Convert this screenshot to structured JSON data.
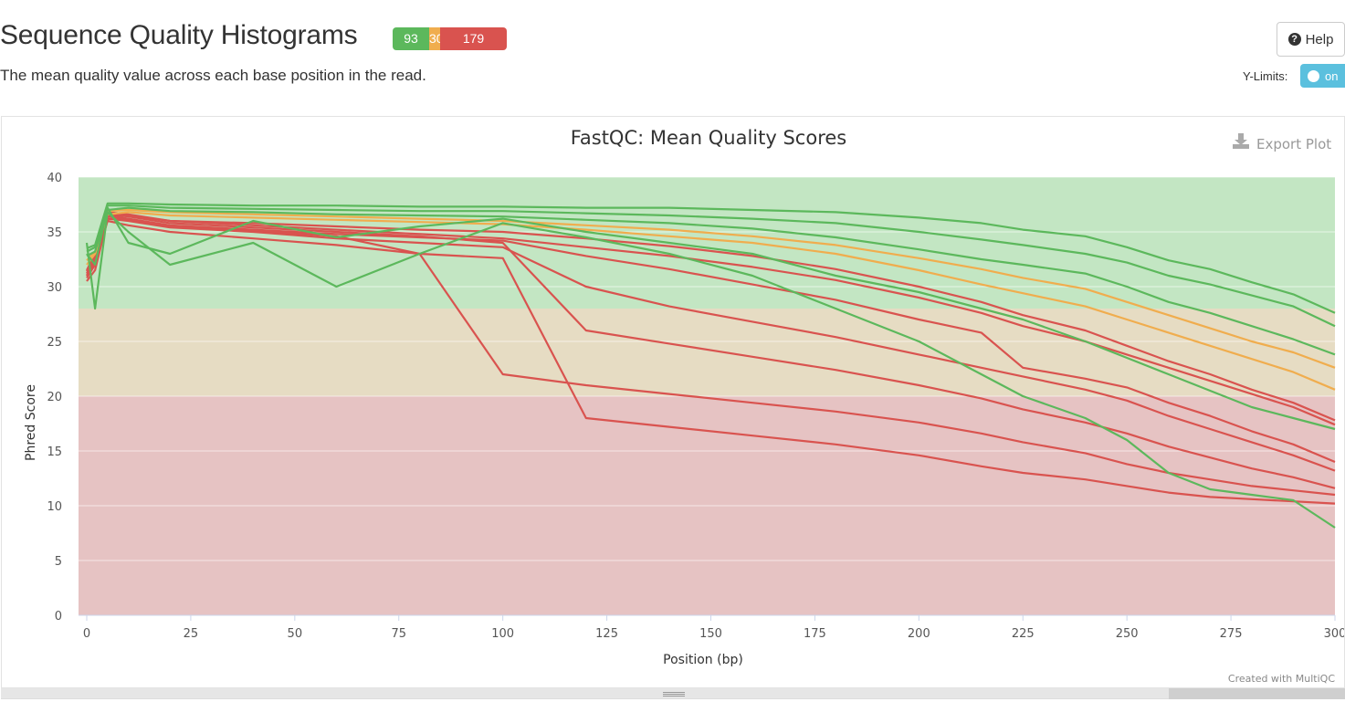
{
  "header": {
    "title": "Sequence Quality Histograms",
    "description": "The mean quality value across each base position in the read.",
    "help_label": "Help",
    "ylimits_label": "Y-Limits:",
    "ylimits_toggle": "on"
  },
  "status": {
    "pass": "93",
    "warn": "30",
    "fail": "179",
    "colors": {
      "pass": "#5cb85c",
      "warn": "#f0ad4e",
      "fail": "#d9534f"
    }
  },
  "plot": {
    "export_label": "Export Plot",
    "credit": "Created with MultiQC"
  },
  "chart_data": {
    "type": "line",
    "title": "FastQC: Mean Quality Scores",
    "xlabel": "Position (bp)",
    "ylabel": "Phred Score",
    "xlim": [
      0,
      300
    ],
    "ylim": [
      0,
      40
    ],
    "xticks": [
      0,
      25,
      50,
      75,
      100,
      125,
      150,
      175,
      200,
      225,
      250,
      275,
      300
    ],
    "yticks": [
      0,
      5,
      10,
      15,
      20,
      25,
      30,
      35,
      40
    ],
    "bands": [
      {
        "from": 28,
        "to": 40,
        "color": "#c3e6c3"
      },
      {
        "from": 20,
        "to": 28,
        "color": "#e6dcc3"
      },
      {
        "from": 0,
        "to": 20,
        "color": "#e6c3c3"
      }
    ],
    "x": [
      0,
      2,
      5,
      10,
      20,
      40,
      60,
      80,
      100,
      120,
      140,
      160,
      180,
      200,
      215,
      225,
      240,
      250,
      260,
      270,
      280,
      290,
      300
    ],
    "series": [
      {
        "status": "pass",
        "color": "#5cb85c",
        "values": [
          33.5,
          33.8,
          37.6,
          37.6,
          37.5,
          37.4,
          37.4,
          37.3,
          37.3,
          37.2,
          37.2,
          37.0,
          36.8,
          36.3,
          35.8,
          35.2,
          34.6,
          33.6,
          32.4,
          31.6,
          30.4,
          29.3,
          27.6
        ]
      },
      {
        "status": "pass",
        "color": "#5cb85c",
        "values": [
          33.2,
          33.6,
          37.4,
          37.4,
          37.2,
          37.1,
          37.0,
          36.9,
          36.9,
          36.7,
          36.5,
          36.2,
          35.8,
          35.0,
          34.3,
          33.8,
          33.0,
          32.2,
          31.0,
          30.2,
          29.2,
          28.2,
          26.4
        ]
      },
      {
        "status": "pass",
        "color": "#5cb85c",
        "values": [
          32.8,
          33.2,
          37.0,
          37.2,
          36.9,
          36.8,
          36.6,
          36.5,
          36.4,
          36.1,
          35.8,
          35.3,
          34.5,
          33.4,
          32.5,
          32.0,
          31.2,
          30.0,
          28.6,
          27.6,
          26.4,
          25.2,
          23.8
        ]
      },
      {
        "status": "pass",
        "color": "#5cb85c",
        "values": [
          33.0,
          32.0,
          37.2,
          34.0,
          33.0,
          36.0,
          34.5,
          35.5,
          36.2,
          35.0,
          34.0,
          33.0,
          31.0,
          29.5,
          28.0,
          27.0,
          25.0,
          23.5,
          22.0,
          20.5,
          19.0,
          18.0,
          17.0
        ]
      },
      {
        "status": "pass",
        "color": "#5cb85c",
        "values": [
          34.0,
          28.0,
          36.8,
          35.0,
          32.0,
          34.0,
          30.0,
          33.0,
          35.8,
          34.5,
          33.0,
          31.0,
          28.0,
          25.0,
          22.0,
          20.0,
          18.0,
          16.0,
          13.0,
          11.5,
          11.0,
          10.5,
          8.0
        ]
      },
      {
        "status": "warn",
        "color": "#f0ad4e",
        "values": [
          32.0,
          33.0,
          36.6,
          36.8,
          36.5,
          36.3,
          36.1,
          35.9,
          35.7,
          35.2,
          34.6,
          34.0,
          33.0,
          31.5,
          30.2,
          29.4,
          28.2,
          27.0,
          25.8,
          24.6,
          23.4,
          22.2,
          20.6
        ]
      },
      {
        "status": "warn",
        "color": "#f0ad4e",
        "values": [
          32.4,
          33.2,
          36.9,
          37.0,
          36.8,
          36.6,
          36.4,
          36.2,
          36.0,
          35.6,
          35.2,
          34.6,
          33.8,
          32.6,
          31.6,
          30.8,
          29.8,
          28.6,
          27.4,
          26.2,
          25.0,
          24.0,
          22.6
        ]
      },
      {
        "status": "fail",
        "color": "#d9534f",
        "values": [
          31.0,
          32.5,
          36.8,
          36.6,
          36.0,
          35.8,
          35.5,
          35.2,
          35.0,
          34.4,
          33.7,
          32.8,
          31.6,
          30.0,
          28.6,
          27.4,
          26.0,
          24.6,
          23.2,
          22.0,
          20.6,
          19.4,
          17.8
        ]
      },
      {
        "status": "fail",
        "color": "#d9534f",
        "values": [
          31.5,
          33.0,
          36.5,
          36.2,
          35.6,
          35.2,
          34.8,
          34.5,
          34.2,
          32.8,
          31.6,
          30.2,
          28.8,
          27.0,
          25.8,
          22.6,
          21.6,
          20.8,
          19.4,
          18.2,
          16.8,
          15.6,
          14.0
        ]
      },
      {
        "status": "fail",
        "color": "#d9534f",
        "values": [
          30.5,
          31.5,
          36.2,
          36.0,
          35.4,
          35.0,
          34.4,
          34.0,
          33.6,
          30.0,
          28.2,
          26.8,
          25.4,
          23.8,
          22.6,
          21.8,
          20.6,
          19.6,
          18.2,
          17.0,
          15.8,
          14.6,
          13.2
        ]
      },
      {
        "status": "fail",
        "color": "#d9534f",
        "values": [
          31.2,
          32.8,
          36.6,
          36.4,
          35.8,
          35.4,
          35.0,
          34.6,
          34.0,
          26.0,
          24.8,
          23.6,
          22.4,
          21.0,
          19.8,
          18.8,
          17.6,
          16.6,
          15.4,
          14.4,
          13.4,
          12.6,
          11.6
        ]
      },
      {
        "status": "fail",
        "color": "#d9534f",
        "values": [
          30.8,
          32.0,
          36.0,
          35.6,
          35.0,
          34.4,
          33.8,
          33.0,
          32.6,
          18.0,
          17.2,
          16.4,
          15.6,
          14.6,
          13.6,
          13.0,
          12.4,
          11.8,
          11.2,
          10.8,
          10.6,
          10.4,
          10.2
        ]
      },
      {
        "status": "fail",
        "color": "#d9534f",
        "values": [
          31.0,
          32.2,
          36.4,
          36.1,
          35.5,
          35.1,
          34.6,
          33.0,
          22.0,
          21.0,
          20.2,
          19.4,
          18.6,
          17.6,
          16.6,
          15.8,
          14.8,
          13.8,
          13.0,
          12.4,
          11.8,
          11.4,
          11.0
        ]
      },
      {
        "status": "fail",
        "color": "#d9534f",
        "values": [
          31.4,
          32.6,
          36.7,
          36.5,
          36.0,
          35.6,
          35.2,
          34.8,
          34.4,
          33.6,
          32.8,
          31.8,
          30.6,
          29.0,
          27.6,
          26.4,
          25.0,
          23.8,
          22.6,
          21.4,
          20.2,
          19.0,
          17.4
        ]
      }
    ]
  }
}
